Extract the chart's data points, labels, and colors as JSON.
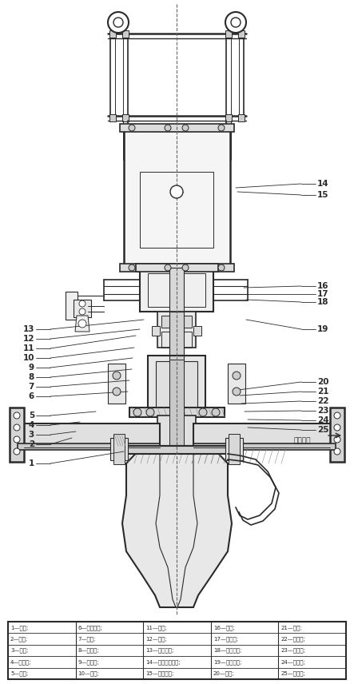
{
  "bg_color": "#ffffff",
  "lc": "#2a2a2a",
  "table_rows": [
    [
      "1—阀体;",
      "6—波纹管算;",
      "11—填柱;",
      "16—阀柱;",
      "21—填柱;"
    ],
    [
      "2—阀盖;",
      "7—填圈;",
      "12—填柱;",
      "17—调节器;",
      "22—弹簧庞;"
    ],
    [
      "3—阀杆;",
      "8—波纹管;",
      "13—气动阀件;",
      "18—调节压板;",
      "23—过渡装;"
    ],
    [
      "4—下阀杆;",
      "9—调阀盖;",
      "14—气动执行机构;",
      "19—调节压差;",
      "24—开升片;"
    ],
    [
      "5—庞片;",
      "10—过渡;",
      "15—限位开关;",
      "20—填柱;",
      "25—调节片;"
    ]
  ],
  "left_labels": [
    [
      13,
      45,
      412,
      180,
      400
    ],
    [
      12,
      45,
      424,
      175,
      412
    ],
    [
      11,
      45,
      436,
      170,
      420
    ],
    [
      10,
      45,
      448,
      168,
      435
    ],
    [
      9,
      45,
      460,
      166,
      448
    ],
    [
      8,
      45,
      472,
      165,
      462
    ],
    [
      7,
      45,
      484,
      162,
      476
    ],
    [
      6,
      45,
      496,
      160,
      490
    ],
    [
      5,
      45,
      520,
      120,
      515
    ],
    [
      4,
      45,
      532,
      100,
      528
    ],
    [
      3,
      45,
      544,
      95,
      540
    ],
    [
      2,
      45,
      556,
      90,
      548
    ],
    [
      1,
      45,
      580,
      155,
      565
    ]
  ],
  "right_labels": [
    [
      14,
      395,
      230,
      295,
      235
    ],
    [
      15,
      395,
      244,
      297,
      240
    ],
    [
      16,
      395,
      358,
      305,
      360
    ],
    [
      17,
      395,
      368,
      308,
      368
    ],
    [
      18,
      395,
      378,
      308,
      375
    ],
    [
      19,
      395,
      412,
      308,
      400
    ],
    [
      20,
      395,
      478,
      298,
      488
    ],
    [
      21,
      395,
      490,
      300,
      495
    ],
    [
      22,
      395,
      502,
      302,
      505
    ],
    [
      23,
      395,
      514,
      306,
      515
    ],
    [
      24,
      395,
      526,
      310,
      525
    ],
    [
      25,
      395,
      538,
      310,
      535
    ]
  ]
}
